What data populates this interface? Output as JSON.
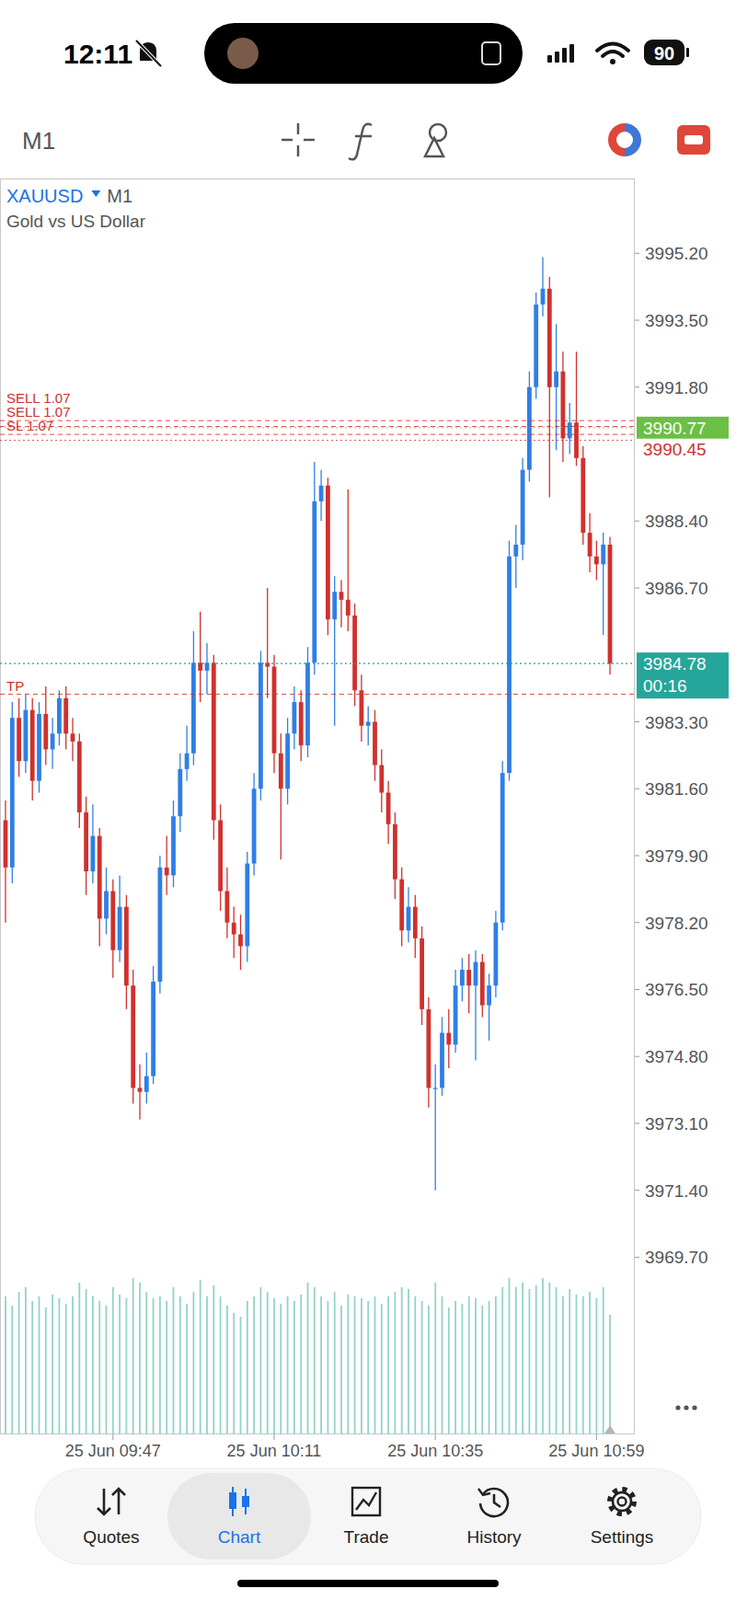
{
  "status_bar": {
    "time": "12:11",
    "battery": "90"
  },
  "toolbar": {
    "timeframe": "M1"
  },
  "chart_data": {
    "type": "candlestick",
    "title": "XAUUSD",
    "timeframe": "M1",
    "subtitle": "Gold vs US Dollar",
    "categories": [
      null,
      null,
      null,
      null,
      null,
      null,
      null,
      null,
      null,
      null,
      null,
      null,
      null,
      null,
      null,
      null,
      "25 Jun 09:47",
      null,
      null,
      null,
      null,
      null,
      null,
      null,
      null,
      null,
      null,
      null,
      null,
      null,
      null,
      null,
      null,
      null,
      null,
      null,
      null,
      null,
      null,
      null,
      "25 Jun 10:11",
      null,
      null,
      null,
      null,
      null,
      null,
      null,
      null,
      null,
      null,
      null,
      null,
      null,
      null,
      null,
      null,
      null,
      null,
      null,
      null,
      null,
      null,
      null,
      "25 Jun 10:35",
      null,
      null,
      null,
      null,
      null,
      null,
      null,
      null,
      null,
      null,
      null,
      null,
      null,
      null,
      null,
      null,
      null,
      null,
      null,
      null,
      null,
      null,
      null,
      "25 Jun 10:59",
      null,
      null
    ],
    "open": [
      3980.8,
      3979.6,
      3983.4,
      3982.3,
      3983.6,
      3981.8,
      3983.5,
      3982.6,
      3983.0,
      3983.9,
      3983.0,
      3982.8,
      3981.0,
      3979.5,
      3980.4,
      3978.3,
      3979.0,
      3977.5,
      3978.6,
      3976.6,
      3974.0,
      3973.9,
      3974.3,
      3976.7,
      3979.6,
      3979.4,
      3980.9,
      3982.1,
      3982.5,
      3984.8,
      3984.6,
      3984.8,
      3980.8,
      3979.0,
      3978.2,
      3977.9,
      3977.6,
      3979.7,
      3981.6,
      3984.8,
      3984.7,
      3982.5,
      3981.6,
      3983.0,
      3983.8,
      3982.7,
      3984.8,
      3988.9,
      3989.3,
      3985.9,
      3986.6,
      3986.4,
      3986.0,
      3984.1,
      3983.2,
      3983.3,
      3982.2,
      3981.5,
      3980.7,
      3979.3,
      3978.0,
      3978.6,
      3977.8,
      3976.0,
      3974.0,
      3974.0,
      3975.4,
      3975.1,
      3976.6,
      3977.0,
      3976.6,
      3977.2,
      3976.1,
      3976.6,
      3978.2,
      3982.0,
      3987.5,
      3987.8,
      3989.7,
      3991.8,
      3993.9,
      3994.3,
      3991.8,
      3992.2,
      3990.5,
      3990.9,
      3990.0,
      3988.1,
      3987.5,
      3987.3,
      3987.8
    ],
    "high": [
      3981.3,
      3983.8,
      3983.9,
      3984.0,
      3983.9,
      3983.8,
      3984.2,
      3983.4,
      3984.1,
      3984.2,
      3983.4,
      3983.0,
      3981.4,
      3981.2,
      3980.6,
      3979.6,
      3979.3,
      3979.4,
      3978.9,
      3977.0,
      3974.6,
      3974.9,
      3977.1,
      3979.9,
      3980.4,
      3981.3,
      3982.5,
      3983.2,
      3985.6,
      3986.1,
      3985.3,
      3985.0,
      3981.2,
      3979.6,
      3978.6,
      3978.4,
      3980.0,
      3982.0,
      3985.1,
      3986.7,
      3985.0,
      3983.0,
      3983.4,
      3984.2,
      3984.1,
      3985.2,
      3989.9,
      3989.7,
      3989.5,
      3987.0,
      3986.9,
      3989.2,
      3986.3,
      3984.5,
      3983.7,
      3983.6,
      3982.6,
      3981.8,
      3981.0,
      3979.6,
      3979.1,
      3978.9,
      3978.1,
      3976.3,
      3974.6,
      3975.8,
      3976.0,
      3977.0,
      3977.3,
      3977.4,
      3977.5,
      3977.4,
      3976.9,
      3978.5,
      3982.3,
      3987.9,
      3988.3,
      3990.0,
      3992.2,
      3994.2,
      3995.1,
      3994.6,
      3993.4,
      3992.7,
      3991.4,
      3992.7,
      3990.3,
      3988.6,
      3987.9,
      3988.1,
      3988.0
    ],
    "low": [
      3978.2,
      3979.2,
      3981.9,
      3982.0,
      3981.3,
      3981.5,
      3982.2,
      3982.1,
      3982.7,
      3982.6,
      3982.3,
      3980.6,
      3978.9,
      3979.2,
      3977.6,
      3977.9,
      3976.8,
      3977.2,
      3976.0,
      3973.6,
      3973.2,
      3973.6,
      3974.1,
      3976.4,
      3978.9,
      3979.1,
      3980.5,
      3981.8,
      3982.2,
      3983.8,
      3984.0,
      3980.3,
      3978.5,
      3977.8,
      3977.3,
      3977.0,
      3977.2,
      3979.4,
      3981.3,
      3983.9,
      3982.0,
      3979.8,
      3981.2,
      3982.6,
      3982.3,
      3982.4,
      3984.5,
      3988.4,
      3985.5,
      3983.2,
      3985.7,
      3985.6,
      3983.7,
      3982.8,
      3982.7,
      3981.8,
      3981.0,
      3980.2,
      3978.8,
      3977.6,
      3977.7,
      3977.3,
      3975.6,
      3973.5,
      3971.4,
      3973.8,
      3974.5,
      3974.9,
      3976.2,
      3975.9,
      3974.7,
      3975.8,
      3975.2,
      3976.3,
      3978.0,
      3981.8,
      3986.7,
      3987.4,
      3989.4,
      3991.5,
      3993.6,
      3989.0,
      3990.2,
      3989.9,
      3990.1,
      3989.8,
      3987.8,
      3987.1,
      3986.9,
      3985.5,
      3984.5
    ],
    "close": [
      3979.6,
      3983.4,
      3982.3,
      3983.6,
      3981.8,
      3983.5,
      3982.6,
      3983.0,
      3983.9,
      3983.0,
      3982.8,
      3981.0,
      3979.5,
      3980.4,
      3978.3,
      3979.0,
      3977.5,
      3978.6,
      3976.6,
      3974.0,
      3973.9,
      3974.3,
      3976.7,
      3979.6,
      3979.4,
      3980.9,
      3982.1,
      3982.5,
      3984.8,
      3984.6,
      3984.8,
      3980.8,
      3979.0,
      3978.2,
      3977.9,
      3977.6,
      3979.7,
      3981.6,
      3984.8,
      3984.7,
      3982.5,
      3981.6,
      3983.0,
      3983.8,
      3982.7,
      3984.8,
      3988.9,
      3989.3,
      3985.9,
      3986.6,
      3986.4,
      3986.0,
      3984.1,
      3983.2,
      3983.3,
      3982.2,
      3981.5,
      3980.7,
      3979.3,
      3978.0,
      3978.6,
      3977.8,
      3976.0,
      3974.0,
      3974.0,
      3975.4,
      3975.1,
      3976.6,
      3977.0,
      3976.6,
      3977.2,
      3976.1,
      3976.6,
      3978.2,
      3982.0,
      3987.5,
      3987.8,
      3989.7,
      3991.8,
      3993.9,
      3994.3,
      3991.8,
      3992.2,
      3990.5,
      3990.9,
      3990.0,
      3988.1,
      3987.5,
      3987.3,
      3987.8,
      3984.78
    ],
    "volume": [
      150,
      140,
      155,
      160,
      145,
      150,
      138,
      152,
      148,
      142,
      150,
      165,
      158,
      150,
      145,
      140,
      160,
      152,
      148,
      170,
      165,
      155,
      148,
      150,
      145,
      160,
      150,
      142,
      155,
      168,
      150,
      162,
      150,
      140,
      132,
      128,
      145,
      150,
      160,
      155,
      148,
      142,
      150,
      145,
      152,
      165,
      160,
      150,
      145,
      155,
      140,
      152,
      150,
      148,
      145,
      150,
      142,
      150,
      155,
      160,
      158,
      150,
      145,
      140,
      165,
      150,
      138,
      145,
      142,
      150,
      148,
      140,
      145,
      150,
      160,
      170,
      160,
      165,
      158,
      162,
      170,
      165,
      160,
      150,
      158,
      152,
      150,
      155,
      148,
      160,
      130
    ],
    "volume_lim": [
      0,
      200
    ],
    "ylim": [
      3965.2,
      3997.1
    ],
    "yticks": [
      {
        "value": 3995.2,
        "label": "3995.20"
      },
      {
        "value": 3993.5,
        "label": "3993.50"
      },
      {
        "value": 3991.8,
        "label": "3991.80"
      },
      {
        "value": 3988.4,
        "label": "3988.40"
      },
      {
        "value": 3986.7,
        "label": "3986.70"
      },
      {
        "value": 3983.3,
        "label": "3983.30"
      },
      {
        "value": 3981.6,
        "label": "3981.60"
      },
      {
        "value": 3979.9,
        "label": "3979.90"
      },
      {
        "value": 3978.2,
        "label": "3978.20"
      },
      {
        "value": 3976.5,
        "label": "3976.50"
      },
      {
        "value": 3974.8,
        "label": "3974.80"
      },
      {
        "value": 3973.1,
        "label": "3973.10"
      },
      {
        "value": 3971.4,
        "label": "3971.40"
      },
      {
        "value": 3969.7,
        "label": "3969.70"
      }
    ],
    "grid": false,
    "levels": [
      {
        "value": 3990.95,
        "label": "SELL 1.07"
      },
      {
        "value": 3990.8,
        "label": "SELL 1.07"
      },
      {
        "value": 3990.6,
        "label": "SL 1.07"
      },
      {
        "value": 3984.0,
        "label": "TP"
      }
    ],
    "price_tags": [
      {
        "value": 3990.77,
        "label": "3990.77",
        "type": "box",
        "color": "#6cbf45"
      },
      {
        "value": 3990.45,
        "label": "3990.45",
        "type": "text",
        "color": "#d0312d"
      }
    ],
    "current_price": {
      "value": 3984.78,
      "label": "3984.78",
      "timer": "00:16"
    }
  },
  "nav": {
    "items": [
      "Quotes",
      "Chart",
      "Trade",
      "History",
      "Settings"
    ],
    "active": 1
  }
}
